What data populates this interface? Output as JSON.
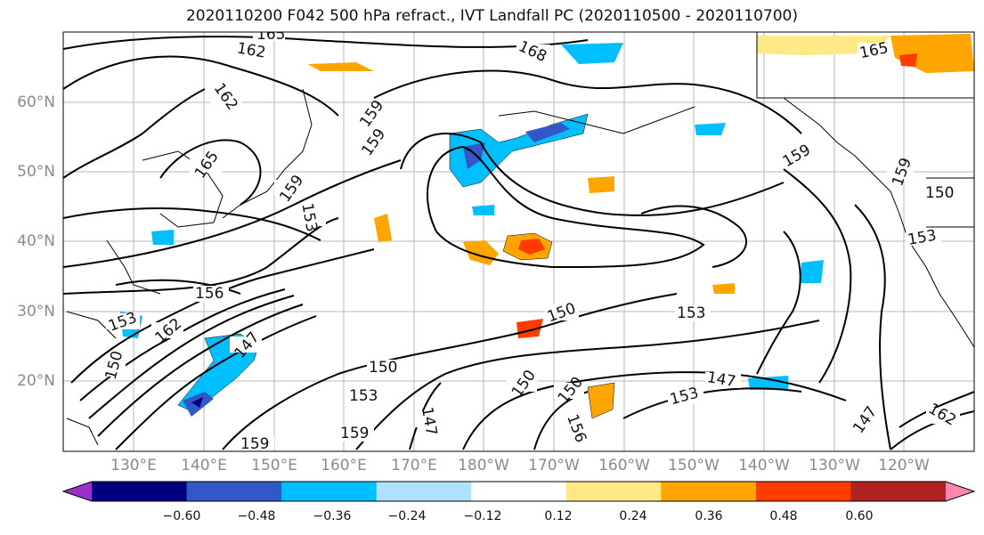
{
  "title": "2020110200 F042 500 hPa refract., IVT Landfall PC (2020110500 - 2020110700)",
  "lat_labels": [
    "60°N",
    "50°N",
    "40°N",
    "30°N",
    "20°N"
  ],
  "lon_labels": [
    "130°E",
    "140°E",
    "150°E",
    "160°E",
    "170°E",
    "180°W",
    "170°W",
    "160°W",
    "150°W",
    "140°W",
    "130°W",
    "120°W"
  ],
  "colorbar": {
    "ticks": [
      "−0.60",
      "−0.48",
      "−0.36",
      "−0.24",
      "−0.12",
      "0.12",
      "0.24",
      "0.36",
      "0.48",
      "0.60"
    ],
    "colors": [
      "#9932cc",
      "#000080",
      "#3457c8",
      "#00bfff",
      "#b0e2ff",
      "#ffffff",
      "#ffe987",
      "#ffa500",
      "#ff3c00",
      "#b22222",
      "#ff88b0"
    ]
  },
  "contour_labels": [
    "165",
    "162",
    "168",
    "165",
    "162",
    "159",
    "165",
    "159",
    "159",
    "159",
    "159",
    "150",
    "153",
    "156",
    "153",
    "162",
    "147",
    "150",
    "153",
    "150",
    "150",
    "153",
    "147",
    "153",
    "150",
    "159",
    "147",
    "156",
    "159",
    "147",
    "162",
    "153",
    "150"
  ]
}
